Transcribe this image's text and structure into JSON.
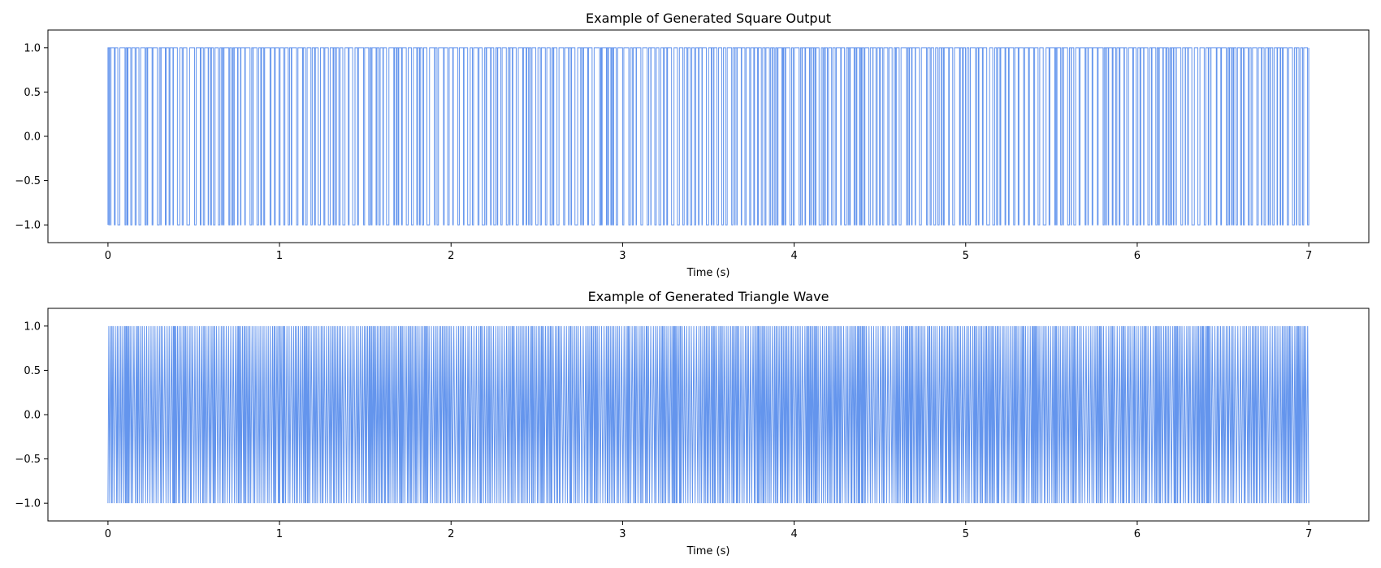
{
  "chart_data": [
    {
      "type": "line",
      "title": "Example of Generated Square Output",
      "xlabel": "Time (s)",
      "ylabel": "",
      "xlim": [
        -0.35,
        7.35
      ],
      "ylim": [
        -1.2,
        1.2
      ],
      "xticks": [
        0,
        1,
        2,
        3,
        4,
        5,
        6,
        7
      ],
      "xtick_labels": [
        "0",
        "1",
        "2",
        "3",
        "4",
        "5",
        "6",
        "7"
      ],
      "yticks": [
        1.0,
        0.5,
        0.0,
        -0.5,
        -1.0
      ],
      "ytick_labels": [
        "1.0",
        "0.5",
        "0.0",
        "−0.5",
        "−1.0"
      ],
      "grid": false,
      "line_color": "#6495ED",
      "series": [
        {
          "waveform": "square",
          "amplitude_range": [
            -1.0,
            1.0
          ],
          "x_range": [
            0,
            7
          ],
          "pulse_count": 300
        }
      ]
    },
    {
      "type": "line",
      "title": "Example of Generated Triangle Wave",
      "xlabel": "Time (s)",
      "ylabel": "",
      "xlim": [
        -0.35,
        7.35
      ],
      "ylim": [
        -1.2,
        1.2
      ],
      "xticks": [
        0,
        1,
        2,
        3,
        4,
        5,
        6,
        7
      ],
      "xtick_labels": [
        "0",
        "1",
        "2",
        "3",
        "4",
        "5",
        "6",
        "7"
      ],
      "yticks": [
        1.0,
        0.5,
        0.0,
        -0.5,
        -1.0
      ],
      "ytick_labels": [
        "1.0",
        "0.5",
        "0.0",
        "−0.5",
        "−1.0"
      ],
      "grid": false,
      "line_color": "#6495ED",
      "series": [
        {
          "waveform": "triangle",
          "amplitude_range": [
            -1.0,
            1.0
          ],
          "x_range": [
            0,
            7
          ],
          "cycle_count": 700
        }
      ]
    }
  ]
}
